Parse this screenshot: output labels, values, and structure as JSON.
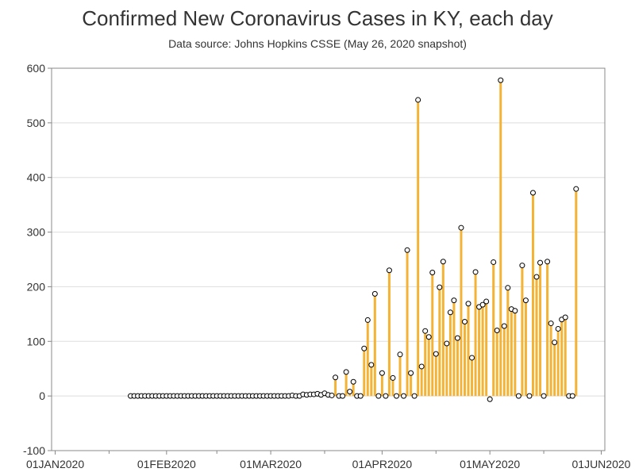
{
  "chart_data": {
    "type": "needle",
    "title": "Confirmed New Coronavirus Cases in KY, each day",
    "subtitle": "Data source: Johns Hopkins CSSE (May 26, 2020 snapshot)",
    "xlabel": "",
    "ylabel": "",
    "ylim": [
      -100,
      600
    ],
    "xlim": [
      "2019-12-31",
      "2020-06-02"
    ],
    "yticks": [
      -100,
      0,
      100,
      200,
      300,
      400,
      500,
      600
    ],
    "xticks": [
      {
        "date": "2020-01-01",
        "label": "01JAN2020"
      },
      {
        "date": "2020-02-01",
        "label": "01FEB2020"
      },
      {
        "date": "2020-03-01",
        "label": "01MAR2020"
      },
      {
        "date": "2020-04-01",
        "label": "01APR2020"
      },
      {
        "date": "2020-05-01",
        "label": "01MAY2020"
      },
      {
        "date": "2020-06-01",
        "label": "01JUN2020"
      }
    ],
    "grid": true,
    "colors": {
      "needle": "#f5b335",
      "marker_fill": "#ffffff",
      "marker_edge": "#000000",
      "grid": "#dddddd",
      "axis": "#888888"
    },
    "points": [
      {
        "x": "2020-01-22",
        "y": 0
      },
      {
        "x": "2020-01-23",
        "y": 0
      },
      {
        "x": "2020-01-24",
        "y": 0
      },
      {
        "x": "2020-01-25",
        "y": 0
      },
      {
        "x": "2020-01-26",
        "y": 0
      },
      {
        "x": "2020-01-27",
        "y": 0
      },
      {
        "x": "2020-01-28",
        "y": 0
      },
      {
        "x": "2020-01-29",
        "y": 0
      },
      {
        "x": "2020-01-30",
        "y": 0
      },
      {
        "x": "2020-01-31",
        "y": 0
      },
      {
        "x": "2020-02-01",
        "y": 0
      },
      {
        "x": "2020-02-02",
        "y": 0
      },
      {
        "x": "2020-02-03",
        "y": 0
      },
      {
        "x": "2020-02-04",
        "y": 0
      },
      {
        "x": "2020-02-05",
        "y": 0
      },
      {
        "x": "2020-02-06",
        "y": 0
      },
      {
        "x": "2020-02-07",
        "y": 0
      },
      {
        "x": "2020-02-08",
        "y": 0
      },
      {
        "x": "2020-02-09",
        "y": 0
      },
      {
        "x": "2020-02-10",
        "y": 0
      },
      {
        "x": "2020-02-11",
        "y": 0
      },
      {
        "x": "2020-02-12",
        "y": 0
      },
      {
        "x": "2020-02-13",
        "y": 0
      },
      {
        "x": "2020-02-14",
        "y": 0
      },
      {
        "x": "2020-02-15",
        "y": 0
      },
      {
        "x": "2020-02-16",
        "y": 0
      },
      {
        "x": "2020-02-17",
        "y": 0
      },
      {
        "x": "2020-02-18",
        "y": 0
      },
      {
        "x": "2020-02-19",
        "y": 0
      },
      {
        "x": "2020-02-20",
        "y": 0
      },
      {
        "x": "2020-02-21",
        "y": 0
      },
      {
        "x": "2020-02-22",
        "y": 0
      },
      {
        "x": "2020-02-23",
        "y": 0
      },
      {
        "x": "2020-02-24",
        "y": 0
      },
      {
        "x": "2020-02-25",
        "y": 0
      },
      {
        "x": "2020-02-26",
        "y": 0
      },
      {
        "x": "2020-02-27",
        "y": 0
      },
      {
        "x": "2020-02-28",
        "y": 0
      },
      {
        "x": "2020-02-29",
        "y": 0
      },
      {
        "x": "2020-03-01",
        "y": 0
      },
      {
        "x": "2020-03-02",
        "y": 0
      },
      {
        "x": "2020-03-03",
        "y": 0
      },
      {
        "x": "2020-03-04",
        "y": 0
      },
      {
        "x": "2020-03-05",
        "y": 0
      },
      {
        "x": "2020-03-06",
        "y": 0
      },
      {
        "x": "2020-03-07",
        "y": 1
      },
      {
        "x": "2020-03-08",
        "y": 0
      },
      {
        "x": "2020-03-09",
        "y": 0
      },
      {
        "x": "2020-03-10",
        "y": 3
      },
      {
        "x": "2020-03-11",
        "y": 2
      },
      {
        "x": "2020-03-12",
        "y": 3
      },
      {
        "x": "2020-03-13",
        "y": 3
      },
      {
        "x": "2020-03-14",
        "y": 4
      },
      {
        "x": "2020-03-15",
        "y": 2
      },
      {
        "x": "2020-03-16",
        "y": 5
      },
      {
        "x": "2020-03-17",
        "y": 2
      },
      {
        "x": "2020-03-18",
        "y": 1
      },
      {
        "x": "2020-03-19",
        "y": 34
      },
      {
        "x": "2020-03-20",
        "y": 0
      },
      {
        "x": "2020-03-21",
        "y": 0
      },
      {
        "x": "2020-03-22",
        "y": 44
      },
      {
        "x": "2020-03-23",
        "y": 8
      },
      {
        "x": "2020-03-24",
        "y": 26
      },
      {
        "x": "2020-03-25",
        "y": 0
      },
      {
        "x": "2020-03-26",
        "y": 0
      },
      {
        "x": "2020-03-27",
        "y": 87
      },
      {
        "x": "2020-03-28",
        "y": 139
      },
      {
        "x": "2020-03-29",
        "y": 57
      },
      {
        "x": "2020-03-30",
        "y": 187
      },
      {
        "x": "2020-03-31",
        "y": 0
      },
      {
        "x": "2020-04-01",
        "y": 42
      },
      {
        "x": "2020-04-02",
        "y": 0
      },
      {
        "x": "2020-04-03",
        "y": 230
      },
      {
        "x": "2020-04-04",
        "y": 33
      },
      {
        "x": "2020-04-05",
        "y": 0
      },
      {
        "x": "2020-04-06",
        "y": 76
      },
      {
        "x": "2020-04-07",
        "y": 0
      },
      {
        "x": "2020-04-08",
        "y": 267
      },
      {
        "x": "2020-04-09",
        "y": 42
      },
      {
        "x": "2020-04-10",
        "y": 0
      },
      {
        "x": "2020-04-11",
        "y": 542
      },
      {
        "x": "2020-04-12",
        "y": 54
      },
      {
        "x": "2020-04-13",
        "y": 119
      },
      {
        "x": "2020-04-14",
        "y": 108
      },
      {
        "x": "2020-04-15",
        "y": 226
      },
      {
        "x": "2020-04-16",
        "y": 77
      },
      {
        "x": "2020-04-17",
        "y": 199
      },
      {
        "x": "2020-04-18",
        "y": 246
      },
      {
        "x": "2020-04-19",
        "y": 96
      },
      {
        "x": "2020-04-20",
        "y": 153
      },
      {
        "x": "2020-04-21",
        "y": 175
      },
      {
        "x": "2020-04-22",
        "y": 106
      },
      {
        "x": "2020-04-23",
        "y": 308
      },
      {
        "x": "2020-04-24",
        "y": 136
      },
      {
        "x": "2020-04-25",
        "y": 169
      },
      {
        "x": "2020-04-26",
        "y": 70
      },
      {
        "x": "2020-04-27",
        "y": 227
      },
      {
        "x": "2020-04-28",
        "y": 163
      },
      {
        "x": "2020-04-29",
        "y": 167
      },
      {
        "x": "2020-04-30",
        "y": 173
      },
      {
        "x": "2020-05-01",
        "y": -6
      },
      {
        "x": "2020-05-02",
        "y": 245
      },
      {
        "x": "2020-05-03",
        "y": 120
      },
      {
        "x": "2020-05-04",
        "y": 578
      },
      {
        "x": "2020-05-05",
        "y": 128
      },
      {
        "x": "2020-05-06",
        "y": 198
      },
      {
        "x": "2020-05-07",
        "y": 159
      },
      {
        "x": "2020-05-08",
        "y": 156
      },
      {
        "x": "2020-05-09",
        "y": 0
      },
      {
        "x": "2020-05-10",
        "y": 239
      },
      {
        "x": "2020-05-11",
        "y": 175
      },
      {
        "x": "2020-05-12",
        "y": 0
      },
      {
        "x": "2020-05-13",
        "y": 372
      },
      {
        "x": "2020-05-14",
        "y": 218
      },
      {
        "x": "2020-05-15",
        "y": 244
      },
      {
        "x": "2020-05-16",
        "y": 0
      },
      {
        "x": "2020-05-17",
        "y": 246
      },
      {
        "x": "2020-05-18",
        "y": 133
      },
      {
        "x": "2020-05-19",
        "y": 98
      },
      {
        "x": "2020-05-20",
        "y": 123
      },
      {
        "x": "2020-05-21",
        "y": 140
      },
      {
        "x": "2020-05-22",
        "y": 144
      },
      {
        "x": "2020-05-23",
        "y": 0
      },
      {
        "x": "2020-05-24",
        "y": 0
      },
      {
        "x": "2020-05-25",
        "y": 379
      }
    ]
  }
}
